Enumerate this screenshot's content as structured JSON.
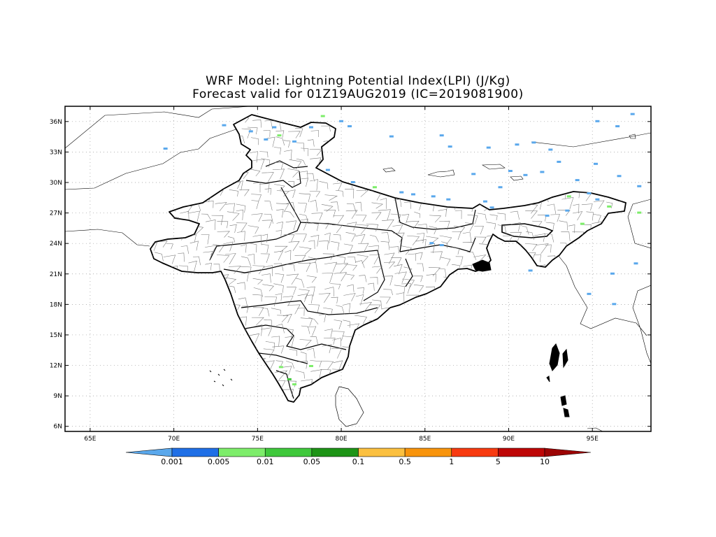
{
  "title": {
    "line1": "WRF Model: Lightning Potential Index(LPI) (J/Kg)",
    "line2": "Forecast valid for 01Z19AUG2019 (IC=2019081900)"
  },
  "map": {
    "lon_range": [
      63.5,
      98.5
    ],
    "lat_range": [
      5.5,
      37.5
    ],
    "lon_ticks": [
      {
        "value": 65,
        "label": "65E"
      },
      {
        "value": 70,
        "label": "70E"
      },
      {
        "value": 75,
        "label": "75E"
      },
      {
        "value": 80,
        "label": "80E"
      },
      {
        "value": 85,
        "label": "85E"
      },
      {
        "value": 90,
        "label": "90E"
      },
      {
        "value": 95,
        "label": "95E"
      }
    ],
    "lat_ticks": [
      {
        "value": 6,
        "label": "6N"
      },
      {
        "value": 9,
        "label": "9N"
      },
      {
        "value": 12,
        "label": "12N"
      },
      {
        "value": 15,
        "label": "15N"
      },
      {
        "value": 18,
        "label": "18N"
      },
      {
        "value": 21,
        "label": "21N"
      },
      {
        "value": 24,
        "label": "24N"
      },
      {
        "value": 27,
        "label": "27N"
      },
      {
        "value": 30,
        "label": "30N"
      },
      {
        "value": 33,
        "label": "33N"
      },
      {
        "value": 36,
        "label": "36N"
      }
    ],
    "grid": "dotted",
    "lpi_patches": [
      {
        "lon": 73.0,
        "lat": 35.6,
        "class": 0
      },
      {
        "lon": 74.6,
        "lat": 35.0,
        "class": 0
      },
      {
        "lon": 76.0,
        "lat": 35.4,
        "class": 0
      },
      {
        "lon": 75.5,
        "lat": 34.2,
        "class": 0
      },
      {
        "lon": 76.3,
        "lat": 34.6,
        "class": 2
      },
      {
        "lon": 77.2,
        "lat": 34.0,
        "class": 0
      },
      {
        "lon": 78.2,
        "lat": 35.4,
        "class": 0
      },
      {
        "lon": 80.0,
        "lat": 36.0,
        "class": 0
      },
      {
        "lon": 80.5,
        "lat": 35.5,
        "class": 0
      },
      {
        "lon": 78.9,
        "lat": 36.5,
        "class": 2
      },
      {
        "lon": 69.5,
        "lat": 33.3,
        "class": 0
      },
      {
        "lon": 79.2,
        "lat": 31.2,
        "class": 0
      },
      {
        "lon": 80.7,
        "lat": 30.0,
        "class": 0
      },
      {
        "lon": 82.0,
        "lat": 29.5,
        "class": 2
      },
      {
        "lon": 83.6,
        "lat": 29.0,
        "class": 0
      },
      {
        "lon": 84.3,
        "lat": 28.8,
        "class": 0
      },
      {
        "lon": 85.5,
        "lat": 28.6,
        "class": 0
      },
      {
        "lon": 86.4,
        "lat": 28.3,
        "class": 0
      },
      {
        "lon": 89.0,
        "lat": 27.5,
        "class": 0
      },
      {
        "lon": 88.6,
        "lat": 28.1,
        "class": 0
      },
      {
        "lon": 92.3,
        "lat": 26.7,
        "class": 0
      },
      {
        "lon": 93.5,
        "lat": 27.2,
        "class": 0
      },
      {
        "lon": 93.6,
        "lat": 28.6,
        "class": 2
      },
      {
        "lon": 94.8,
        "lat": 28.9,
        "class": 0
      },
      {
        "lon": 94.4,
        "lat": 25.9,
        "class": 2
      },
      {
        "lon": 95.3,
        "lat": 28.3,
        "class": 0
      },
      {
        "lon": 85.4,
        "lat": 24.0,
        "class": 0
      },
      {
        "lon": 86.0,
        "lat": 23.8,
        "class": 0
      },
      {
        "lon": 90.5,
        "lat": 33.7,
        "class": 0
      },
      {
        "lon": 91.5,
        "lat": 33.9,
        "class": 0
      },
      {
        "lon": 92.5,
        "lat": 33.2,
        "class": 0
      },
      {
        "lon": 93.0,
        "lat": 32.0,
        "class": 0
      },
      {
        "lon": 90.1,
        "lat": 31.1,
        "class": 0
      },
      {
        "lon": 91.0,
        "lat": 30.7,
        "class": 0
      },
      {
        "lon": 92.0,
        "lat": 31.0,
        "class": 0
      },
      {
        "lon": 95.2,
        "lat": 31.8,
        "class": 0
      },
      {
        "lon": 96.6,
        "lat": 30.6,
        "class": 0
      },
      {
        "lon": 97.8,
        "lat": 29.6,
        "class": 0
      },
      {
        "lon": 89.5,
        "lat": 29.5,
        "class": 0
      },
      {
        "lon": 87.9,
        "lat": 30.8,
        "class": 0
      },
      {
        "lon": 86.0,
        "lat": 34.6,
        "class": 0
      },
      {
        "lon": 86.5,
        "lat": 33.5,
        "class": 0
      },
      {
        "lon": 88.8,
        "lat": 33.4,
        "class": 0
      },
      {
        "lon": 95.3,
        "lat": 36.0,
        "class": 0
      },
      {
        "lon": 96.5,
        "lat": 35.5,
        "class": 0
      },
      {
        "lon": 97.4,
        "lat": 36.7,
        "class": 0
      },
      {
        "lon": 94.1,
        "lat": 30.2,
        "class": 0
      },
      {
        "lon": 83.0,
        "lat": 34.5,
        "class": 0
      },
      {
        "lon": 76.4,
        "lat": 11.8,
        "class": 2
      },
      {
        "lon": 76.9,
        "lat": 10.6,
        "class": 3
      },
      {
        "lon": 77.2,
        "lat": 10.1,
        "class": 2
      },
      {
        "lon": 78.2,
        "lat": 11.9,
        "class": 2
      },
      {
        "lon": 97.8,
        "lat": 27.0,
        "class": 2
      },
      {
        "lon": 96.0,
        "lat": 27.6,
        "class": 2
      },
      {
        "lon": 91.3,
        "lat": 21.3,
        "class": 0
      },
      {
        "lon": 94.8,
        "lat": 19.0,
        "class": 0
      },
      {
        "lon": 96.3,
        "lat": 18.0,
        "class": 0
      },
      {
        "lon": 96.2,
        "lat": 21.0,
        "class": 0
      },
      {
        "lon": 97.6,
        "lat": 22.0,
        "class": 0
      }
    ]
  },
  "colorbar": {
    "colors": [
      "#5aa8ec",
      "#1f6fe6",
      "#7ded6a",
      "#3fc83b",
      "#1d9416",
      "#fbc040",
      "#f8940c",
      "#f73a10",
      "#be0606",
      "#9c0404"
    ],
    "labels": [
      "0.001",
      "0.005",
      "0.01",
      "0.05",
      "0.1",
      "0.5",
      "1",
      "5",
      "10"
    ]
  }
}
